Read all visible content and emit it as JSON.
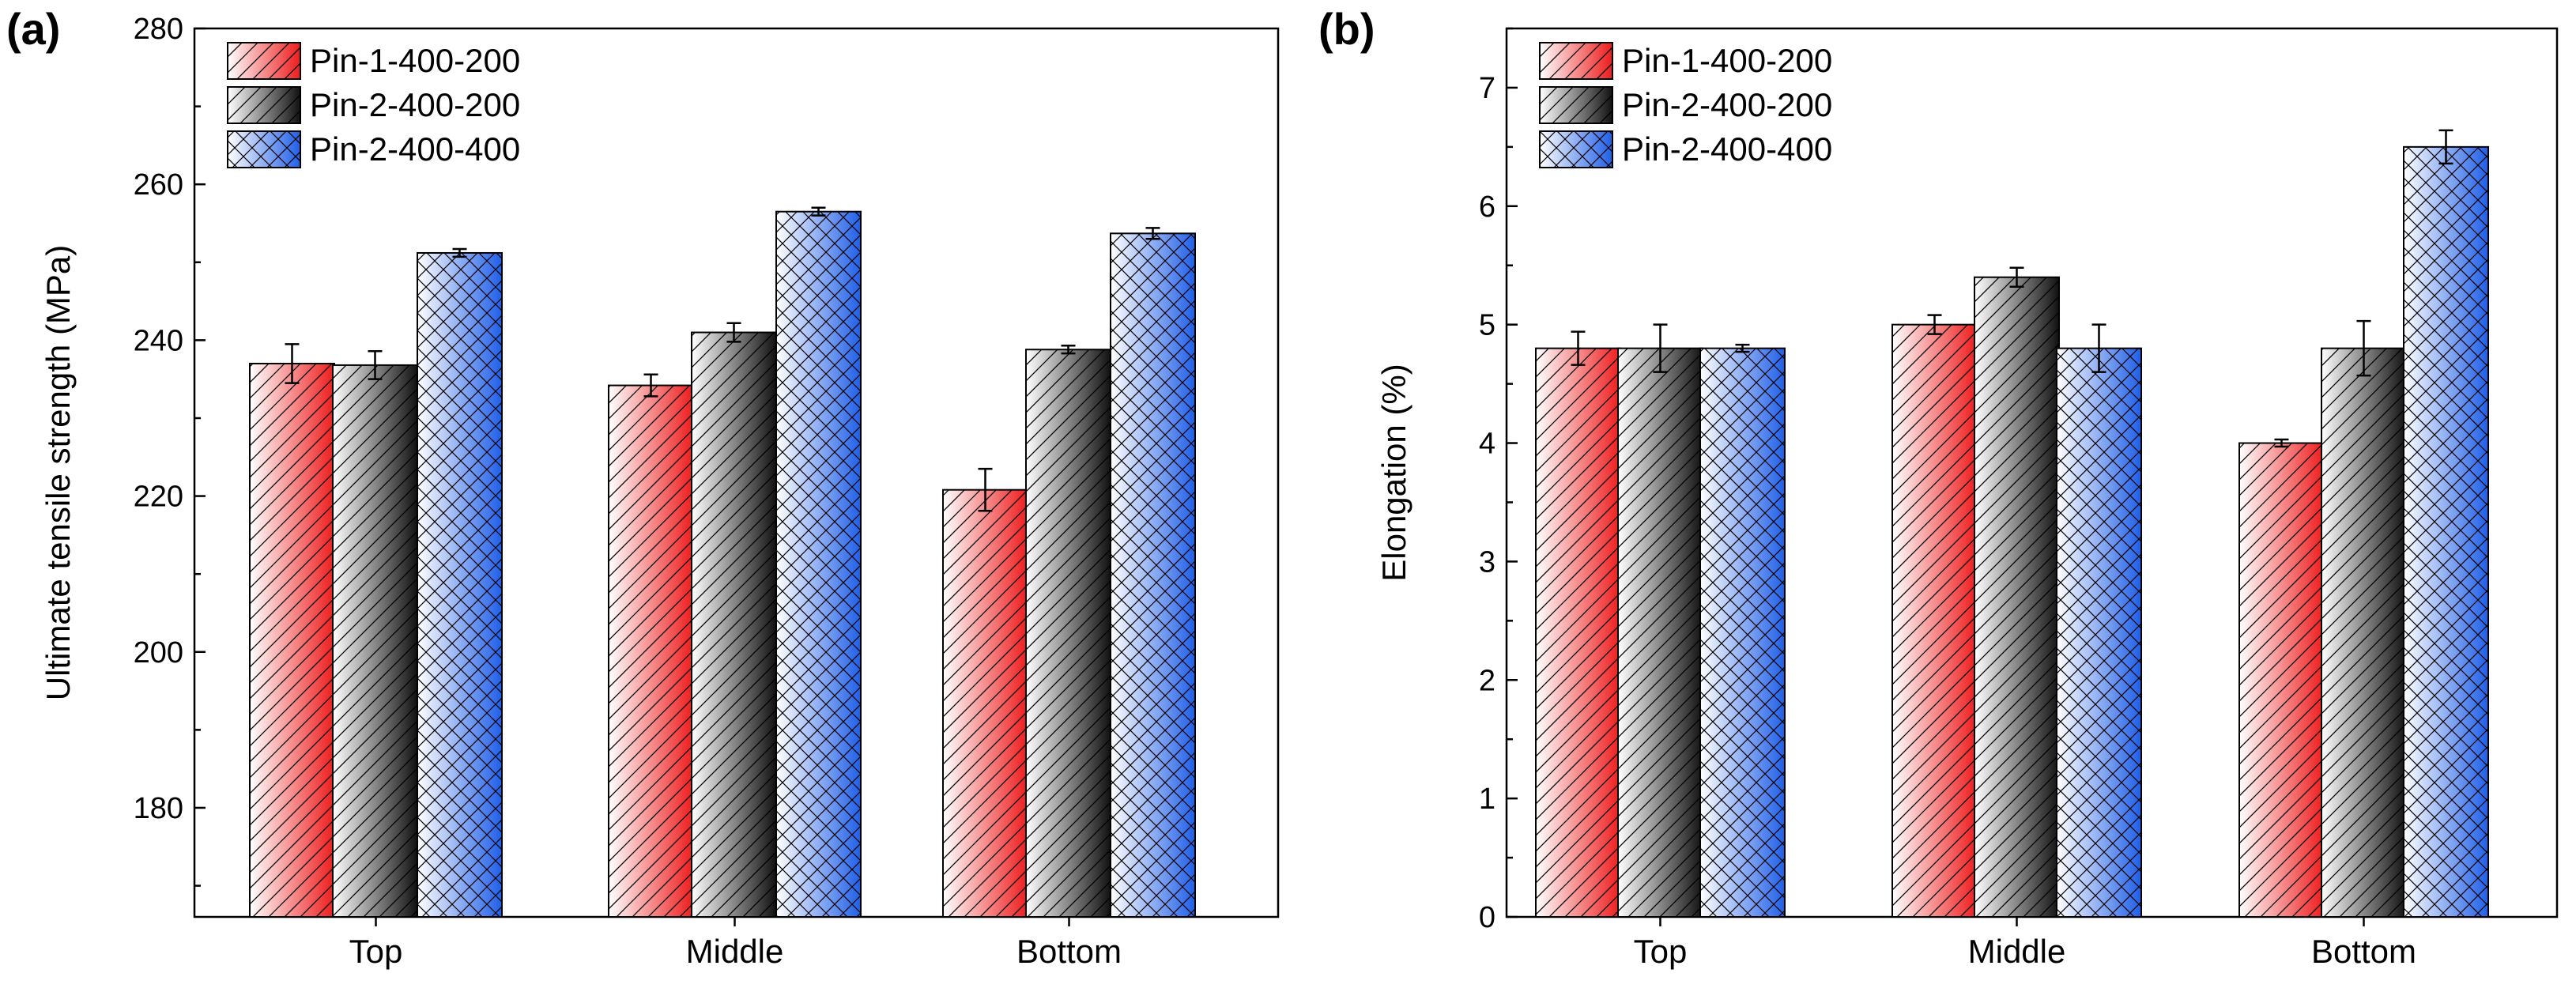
{
  "chart_data": [
    {
      "panel_label": "(a)",
      "type": "bar",
      "categories": [
        "Top",
        "Middle",
        "Bottom"
      ],
      "ylabel": "Ultimate tensile strength (MPa)",
      "xlabel": "",
      "ylim": [
        166,
        280
      ],
      "yticks": [
        180,
        200,
        220,
        240,
        260,
        280
      ],
      "legend_position": "top-left",
      "series": [
        {
          "name": "Pin-1-400-200",
          "values": [
            237.0,
            234.2,
            220.8
          ],
          "errors": [
            2.5,
            1.4,
            2.7
          ],
          "color": "#ee1c1c",
          "hatch": "diagonal"
        },
        {
          "name": "Pin-2-400-200",
          "values": [
            236.8,
            241.0,
            238.8
          ],
          "errors": [
            1.8,
            1.2,
            0.5
          ],
          "color": "#111111",
          "hatch": "diagonal"
        },
        {
          "name": "Pin-2-400-400",
          "values": [
            251.2,
            256.5,
            253.7
          ],
          "errors": [
            0.5,
            0.5,
            0.7
          ],
          "color": "#1f5fe8",
          "hatch": "cross"
        }
      ]
    },
    {
      "panel_label": "(b)",
      "type": "bar",
      "categories": [
        "Top",
        "Middle",
        "Bottom"
      ],
      "ylabel": "Elongation (%)",
      "xlabel": "",
      "ylim": [
        0,
        7.5
      ],
      "yticks": [
        0,
        1,
        2,
        3,
        4,
        5,
        6,
        7
      ],
      "legend_position": "top-left",
      "series": [
        {
          "name": "Pin-1-400-200",
          "values": [
            4.8,
            5.0,
            4.0
          ],
          "errors": [
            0.14,
            0.08,
            0.03
          ],
          "color": "#ee1c1c",
          "hatch": "diagonal"
        },
        {
          "name": "Pin-2-400-200",
          "values": [
            4.8,
            5.4,
            4.8
          ],
          "errors": [
            0.2,
            0.08,
            0.23
          ],
          "color": "#111111",
          "hatch": "diagonal"
        },
        {
          "name": "Pin-2-400-400",
          "values": [
            4.8,
            4.8,
            6.5
          ],
          "errors": [
            0.03,
            0.2,
            0.14
          ],
          "color": "#1f5fe8",
          "hatch": "cross"
        }
      ]
    }
  ]
}
